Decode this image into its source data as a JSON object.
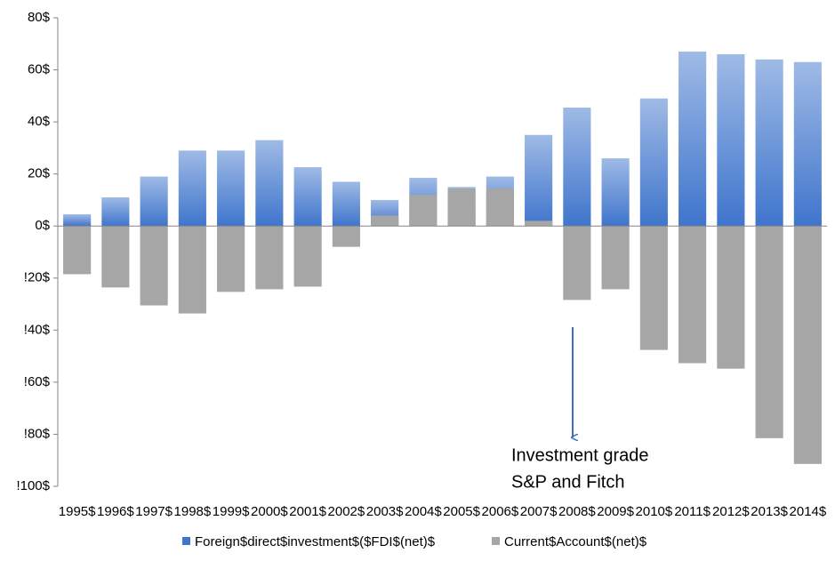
{
  "chart_data": {
    "type": "bar",
    "categories": [
      "1995$",
      "1996$",
      "1997$",
      "1998$",
      "1999$",
      "2000$",
      "2001$",
      "2002$",
      "2003$",
      "2004$",
      "2005$",
      "2006$",
      "2007$",
      "2008$",
      "2009$",
      "2010$",
      "2011$",
      "2012$",
      "2013$",
      "2014$"
    ],
    "series": [
      {
        "name": "Foreign$direct$investment$($FDI$(net)$",
        "color": "#3f75cc",
        "values": [
          4.5,
          11,
          19,
          29,
          29,
          33,
          22.6,
          17,
          10,
          18.5,
          15,
          19,
          35,
          45.5,
          26,
          49,
          67,
          66,
          64,
          63
        ]
      },
      {
        "name": "Current$Account$(net)$",
        "color": "#a6a6a6",
        "values": [
          -18.5,
          -23.6,
          -30.5,
          -33.6,
          -25.3,
          -24.3,
          -23.3,
          -8,
          4,
          12,
          14.4,
          14.4,
          2,
          -28.4,
          -24.3,
          -47.6,
          -52.7,
          -54.8,
          -81.5,
          -91.4
        ]
      }
    ],
    "ylim": [
      -100,
      80
    ],
    "yticks": [
      {
        "value": 80,
        "label": "80$"
      },
      {
        "value": 60,
        "label": "60$"
      },
      {
        "value": 40,
        "label": "40$"
      },
      {
        "value": 20,
        "label": "20$"
      },
      {
        "value": 0,
        "label": "0$"
      },
      {
        "value": -20,
        "label": "!20$"
      },
      {
        "value": -40,
        "label": "!40$"
      },
      {
        "value": -60,
        "label": "!60$"
      },
      {
        "value": -80,
        "label": "!80$"
      },
      {
        "value": -100,
        "label": "!100$"
      }
    ],
    "annotation": [
      "Investment grade",
      "S&P and Fitch"
    ],
    "legend": "bottom"
  }
}
